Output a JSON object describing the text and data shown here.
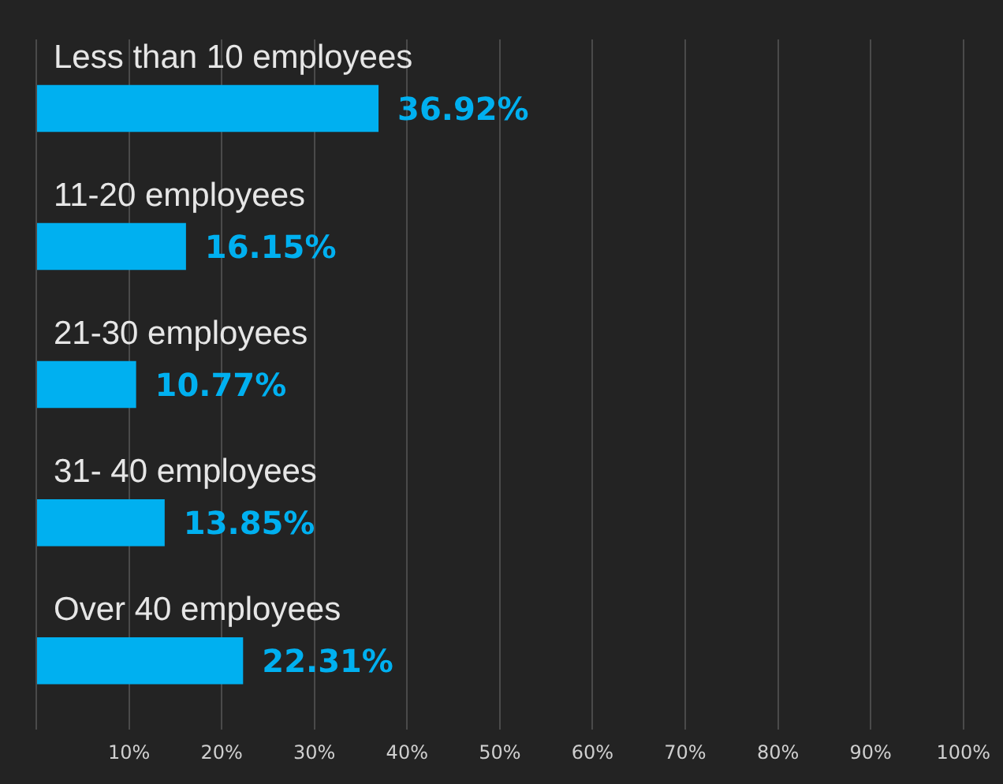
{
  "chart_data": {
    "type": "bar",
    "orientation": "horizontal",
    "categories": [
      "Less than 10 employees",
      "11-20 employees",
      "21-30 employees",
      "31- 40 employees",
      "Over 40 employees"
    ],
    "values": [
      36.92,
      16.15,
      10.77,
      13.85,
      22.31
    ],
    "value_labels": [
      "36.92%",
      "16.15%",
      "10.77%",
      "13.85%",
      "22.31%"
    ],
    "color": "#00b0f0",
    "xlim": [
      0,
      100
    ],
    "xticks": [
      {
        "value": 0,
        "label": null
      },
      {
        "value": 10,
        "label": "10%"
      },
      {
        "value": 20,
        "label": "20%"
      },
      {
        "value": 30,
        "label": "30%"
      },
      {
        "value": 40,
        "label": "40%"
      },
      {
        "value": 50,
        "label": "50%"
      },
      {
        "value": 60,
        "label": "60%"
      },
      {
        "value": 70,
        "label": "70%"
      },
      {
        "value": 80,
        "label": "80%"
      },
      {
        "value": 90,
        "label": "90%"
      },
      {
        "value": 100,
        "label": "100%"
      }
    ],
    "grid": "x",
    "legend": false
  }
}
